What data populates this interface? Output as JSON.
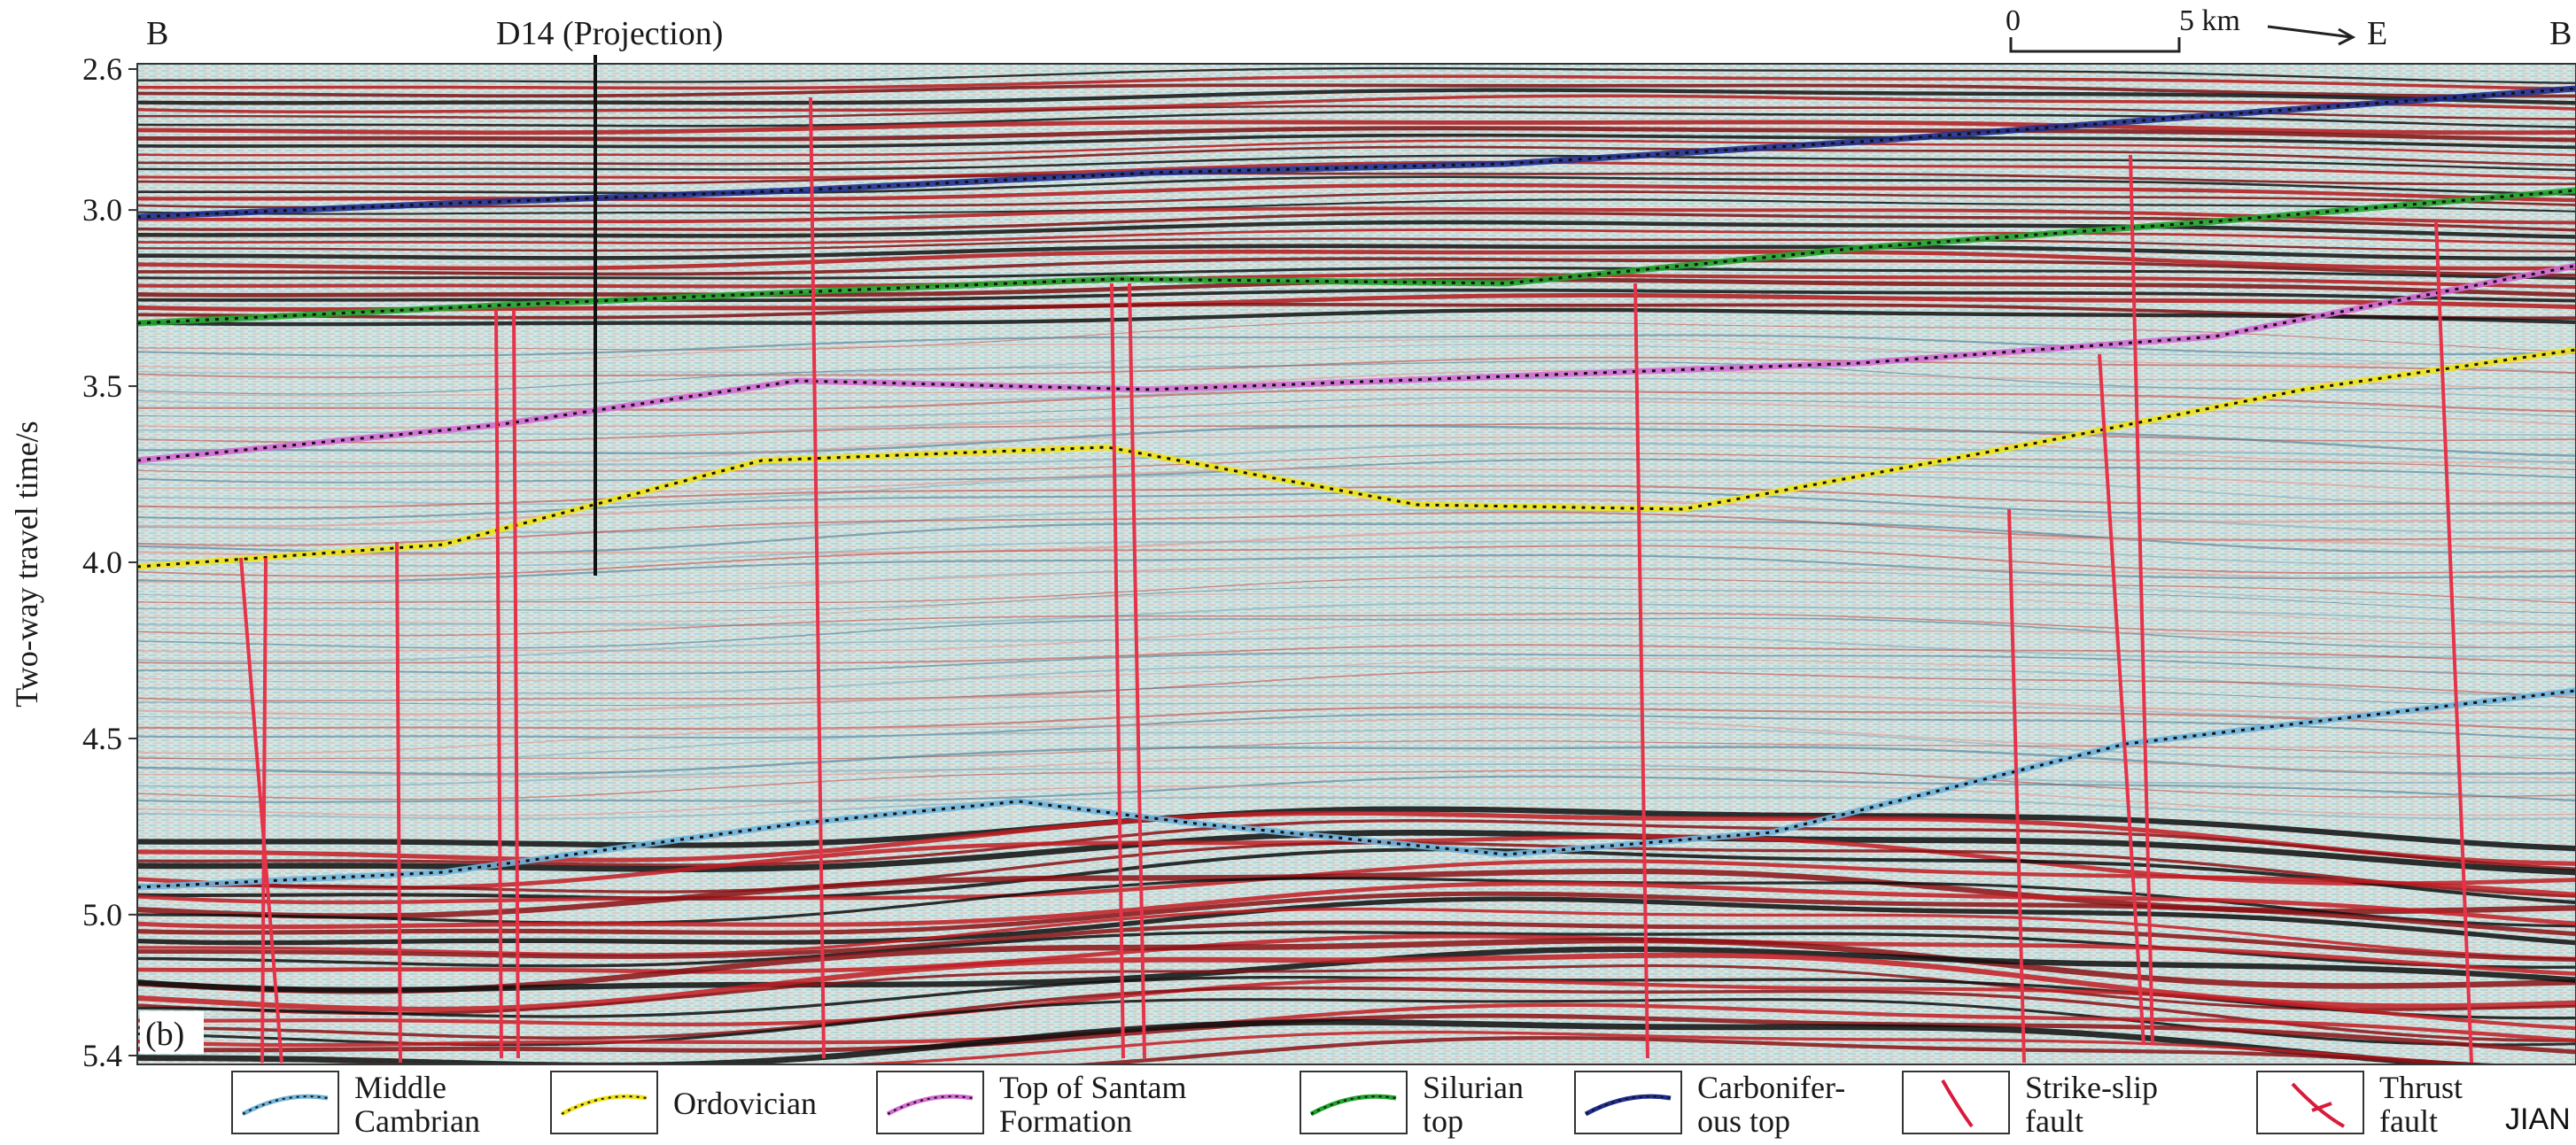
{
  "figure": {
    "panel_label": "(b)",
    "left_section_label": "B",
    "right_section_label": "B",
    "well_label": "D14 (Projection)",
    "y_axis_label": "Two-way travel time/s",
    "y_ticks": [
      "2.6",
      "3.0",
      "3.5",
      "4.0",
      "4.5",
      "5.0",
      "5.4"
    ],
    "y_range": [
      2.6,
      5.4
    ],
    "scale_bar": {
      "start": "0",
      "end": "5 km",
      "direction": "E"
    },
    "watermark": "JIAN"
  },
  "legend": [
    {
      "line1": "Middle",
      "line2": "Cambrian",
      "icon": "dotted-horizon",
      "color": "#6fb3d9"
    },
    {
      "line1": "Ordovician",
      "line2": "",
      "icon": "dotted-horizon",
      "color": "#f0e21a"
    },
    {
      "line1": "Top of Santam",
      "line2": "Formation",
      "icon": "dotted-horizon",
      "color": "#d36ad3"
    },
    {
      "line1": "Silurian",
      "line2": "top",
      "icon": "dotted-horizon",
      "color": "#1fa32a"
    },
    {
      "line1": "Carbonifer-",
      "line2": "ous top",
      "icon": "dotted-horizon",
      "color": "#1f2d8f"
    },
    {
      "line1": "Strike-slip",
      "line2": "fault",
      "icon": "strike-slip-fault",
      "color": "#d81b3b"
    },
    {
      "line1": "Thrust",
      "line2": "fault",
      "icon": "thrust-fault",
      "color": "#d81b3b"
    }
  ]
}
